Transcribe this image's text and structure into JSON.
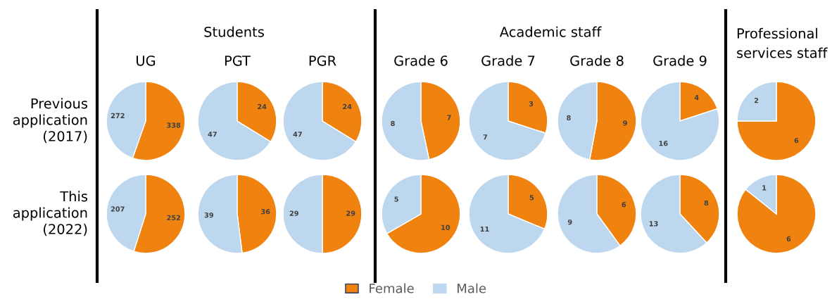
{
  "chart_data": [
    {
      "type": "pie",
      "title": "UG",
      "categories": [
        "Female",
        "Male"
      ],
      "values": [
        338,
        272
      ],
      "colors": [
        "#f0830f",
        "#bdd7ee"
      ],
      "data_labels": true,
      "legend": "bottom",
      "annotations": [
        "Students",
        "Previous application (2017)"
      ]
    },
    {
      "type": "pie",
      "title": "PGT",
      "categories": [
        null,
        null
      ],
      "values": [
        24,
        47
      ],
      "colors": [
        "#f0830f",
        "#bdd7ee"
      ],
      "data_labels": true
    },
    {
      "type": "pie",
      "title": "PGR",
      "categories": [
        null,
        null
      ],
      "values": [
        24,
        47
      ],
      "colors": [
        "#f0830f",
        "#bdd7ee"
      ],
      "data_labels": true
    },
    {
      "type": "pie",
      "title": "Grade 6",
      "categories": [
        null,
        null
      ],
      "values": [
        7,
        8
      ],
      "colors": [
        "#f0830f",
        "#bdd7ee"
      ],
      "data_labels": true,
      "annotations": [
        "Academic staff"
      ]
    },
    {
      "type": "pie",
      "title": "Grade 7",
      "categories": [
        null,
        null
      ],
      "values": [
        3,
        7
      ],
      "colors": [
        "#f0830f",
        "#bdd7ee"
      ],
      "data_labels": true
    },
    {
      "type": "pie",
      "title": "Grade 8",
      "categories": [
        null,
        null
      ],
      "values": [
        9,
        8
      ],
      "colors": [
        "#f0830f",
        "#bdd7ee"
      ],
      "data_labels": true
    },
    {
      "type": "pie",
      "title": "Grade 9",
      "categories": [
        null,
        null
      ],
      "values": [
        4,
        16
      ],
      "colors": [
        "#f0830f",
        "#bdd7ee"
      ],
      "data_labels": true
    },
    {
      "type": "pie",
      "title": "Professional services staff",
      "categories": [
        null,
        null
      ],
      "values": [
        6,
        2
      ],
      "colors": [
        "#f0830f",
        "#bdd7ee"
      ],
      "data_labels": true
    },
    {
      "type": "pie",
      "categories": [
        null,
        null
      ],
      "values": [
        252,
        207
      ],
      "colors": [
        "#f0830f",
        "#bdd7ee"
      ],
      "data_labels": true,
      "annotations": [
        "This application (2022)"
      ]
    },
    {
      "type": "pie",
      "categories": [
        null,
        null
      ],
      "values": [
        36,
        39
      ],
      "colors": [
        "#f0830f",
        "#bdd7ee"
      ],
      "data_labels": true
    },
    {
      "type": "pie",
      "categories": [
        null,
        null
      ],
      "values": [
        29,
        29
      ],
      "colors": [
        "#f0830f",
        "#bdd7ee"
      ],
      "data_labels": true
    },
    {
      "type": "pie",
      "categories": [
        null,
        null
      ],
      "values": [
        10,
        5
      ],
      "colors": [
        "#f0830f",
        "#bdd7ee"
      ],
      "data_labels": true
    },
    {
      "type": "pie",
      "categories": [
        null,
        null
      ],
      "values": [
        5,
        11
      ],
      "colors": [
        "#f0830f",
        "#bdd7ee"
      ],
      "data_labels": true
    },
    {
      "type": "pie",
      "categories": [
        null,
        null
      ],
      "values": [
        6,
        9
      ],
      "colors": [
        "#f0830f",
        "#bdd7ee"
      ],
      "data_labels": true
    },
    {
      "type": "pie",
      "categories": [
        null,
        null
      ],
      "values": [
        8,
        13
      ],
      "colors": [
        "#f0830f",
        "#bdd7ee"
      ],
      "data_labels": true
    },
    {
      "type": "pie",
      "categories": [
        null,
        null
      ],
      "values": [
        6,
        1
      ],
      "colors": [
        "#f0830f",
        "#bdd7ee"
      ],
      "data_labels": true
    }
  ]
}
